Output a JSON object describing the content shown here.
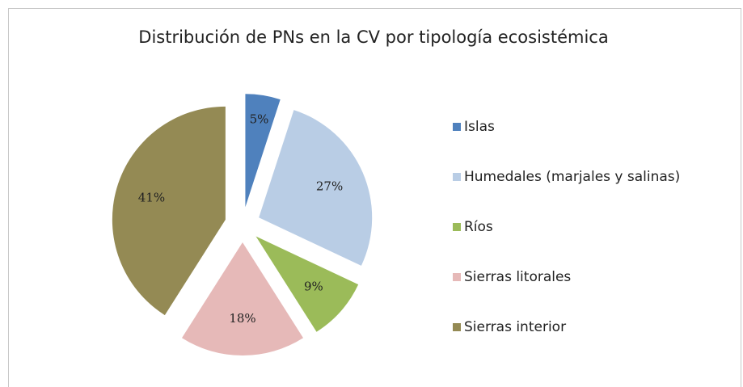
{
  "chart_data": {
    "type": "pie",
    "title": "Distribución de PNs en la CV por tipología ecosistémica",
    "categories": [
      "Islas",
      "Humedales (marjales y salinas)",
      "Ríos",
      "Sierras litorales",
      "Sierras interior"
    ],
    "values": [
      5,
      27,
      9,
      18,
      41
    ],
    "value_labels": [
      "5%",
      "27%",
      "9%",
      "18%",
      "41%"
    ],
    "colors": [
      "#4f81bd",
      "#b9cde5",
      "#9bbb59",
      "#e6b9b8",
      "#948a54"
    ],
    "legend": "right"
  }
}
